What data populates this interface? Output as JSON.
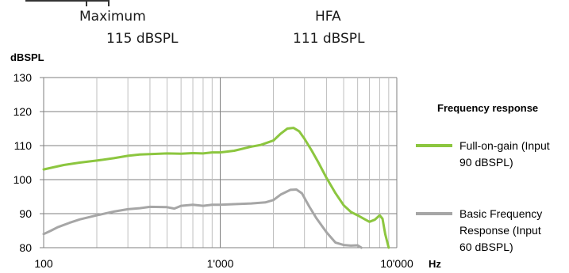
{
  "header": {
    "col1_title": "Maximum",
    "col1_value": "115 dBSPL",
    "col2_title": "HFA",
    "col2_value": "111 dBSPL"
  },
  "chart_data": {
    "type": "line",
    "ylabel": "dBSPL",
    "xlabel": "Hz",
    "x_scale": "log",
    "xlim": [
      100,
      10000
    ],
    "ylim": [
      80,
      130
    ],
    "yticks": [
      80,
      90,
      100,
      110,
      120,
      130
    ],
    "xtick_labels": [
      "100",
      "1'000",
      "10'000"
    ],
    "ytick_labels": [
      "80",
      "90",
      "100",
      "110",
      "120",
      "130"
    ],
    "grid": true,
    "legend_title": "Frequency response",
    "legend_placement": "right",
    "series": [
      {
        "name": "Full-on-gain (Input 90 dBSPL)",
        "legend_lines": [
          "Full-on-gain (Input",
          "90 dBSPL)"
        ],
        "color": "#8cc63f",
        "x": [
          100,
          130,
          160,
          200,
          250,
          300,
          350,
          400,
          500,
          600,
          700,
          800,
          900,
          1000,
          1200,
          1500,
          1700,
          2000,
          2200,
          2400,
          2600,
          2800,
          3000,
          3300,
          3600,
          4000,
          4500,
          5000,
          5500,
          6000,
          6500,
          7000,
          7500,
          8000,
          8300,
          8600,
          9000
        ],
        "y": [
          103,
          104.3,
          105,
          105.6,
          106.3,
          107,
          107.4,
          107.5,
          107.7,
          107.6,
          107.8,
          107.7,
          108,
          108,
          108.5,
          109.7,
          110.2,
          111.5,
          113.5,
          115,
          115.2,
          114.2,
          112,
          108.5,
          105,
          100.5,
          96,
          92.5,
          90.5,
          89.5,
          88.5,
          87.6,
          88.2,
          89.5,
          88.5,
          84,
          80
        ]
      },
      {
        "name": "Basic Frequency Response (Input 60 dBSPL)",
        "legend_lines": [
          "Basic Frequency",
          "Response (Input",
          "60 dBSPL)"
        ],
        "color": "#a6a6a6",
        "x": [
          100,
          110,
          120,
          140,
          160,
          200,
          250,
          300,
          350,
          400,
          500,
          550,
          600,
          700,
          800,
          900,
          1000,
          1200,
          1500,
          1800,
          2000,
          2200,
          2500,
          2700,
          2900,
          3200,
          3500,
          4000,
          4500,
          5000,
          5500,
          6000,
          6300
        ],
        "y": [
          84,
          85,
          86,
          87.3,
          88.3,
          89.5,
          90.6,
          91.3,
          91.6,
          92,
          91.9,
          91.5,
          92.3,
          92.6,
          92.3,
          92.6,
          92.6,
          92.8,
          93,
          93.3,
          94,
          95.6,
          97,
          97.1,
          96,
          92,
          88.7,
          84.5,
          81.5,
          80.8,
          80.6,
          80.7,
          80
        ]
      }
    ]
  }
}
